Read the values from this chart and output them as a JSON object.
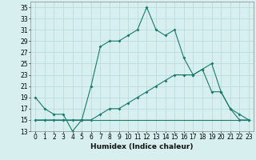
{
  "xlabel": "Humidex (Indice chaleur)",
  "x_values": [
    0,
    1,
    2,
    3,
    4,
    5,
    6,
    7,
    8,
    9,
    10,
    11,
    12,
    13,
    14,
    15,
    16,
    17,
    18,
    19,
    20,
    21,
    22,
    23
  ],
  "line1": [
    19,
    17,
    16,
    16,
    13,
    15,
    21,
    28,
    29,
    29,
    30,
    31,
    35,
    31,
    30,
    31,
    26,
    23,
    24,
    25,
    20,
    17,
    16,
    15
  ],
  "line2": [
    15,
    15,
    15,
    15,
    15,
    15,
    15,
    16,
    17,
    17,
    18,
    19,
    20,
    21,
    22,
    23,
    23,
    23,
    24,
    20,
    20,
    17,
    15,
    15
  ],
  "line3": [
    15,
    15,
    15,
    15,
    15,
    15,
    15,
    15,
    15,
    15,
    15,
    15,
    15,
    15,
    15,
    15,
    15,
    15,
    15,
    15,
    15,
    15,
    15,
    15
  ],
  "line_color": "#1a7a6e",
  "bg_color": "#d8efef",
  "grid_color": "#b8d8d8",
  "ylim": [
    13,
    36
  ],
  "yticks": [
    13,
    15,
    17,
    19,
    21,
    23,
    25,
    27,
    29,
    31,
    33,
    35
  ],
  "xlim": [
    -0.5,
    23.5
  ],
  "tick_fontsize": 5.5,
  "xlabel_fontsize": 6.5
}
